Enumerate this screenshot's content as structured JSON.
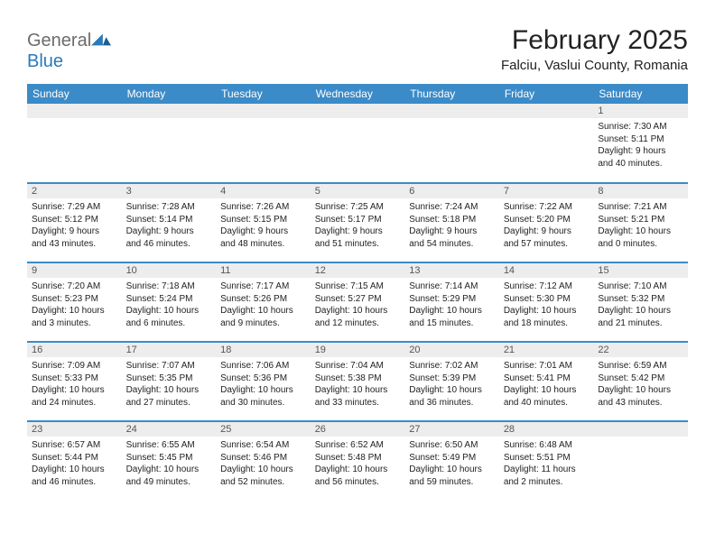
{
  "logo": {
    "text_general": "General",
    "text_blue": "Blue"
  },
  "header": {
    "month_title": "February 2025",
    "location": "Falciu, Vaslui County, Romania"
  },
  "colors": {
    "header_bg": "#3b8bc8",
    "header_text": "#ffffff",
    "daynum_bg": "#ededed",
    "rule": "#3b8bc8",
    "logo_blue": "#2a7ab9",
    "logo_gray": "#6b6b6b"
  },
  "weekdays": [
    "Sunday",
    "Monday",
    "Tuesday",
    "Wednesday",
    "Thursday",
    "Friday",
    "Saturday"
  ],
  "weeks": [
    [
      null,
      null,
      null,
      null,
      null,
      null,
      {
        "n": "1",
        "sr": "Sunrise: 7:30 AM",
        "ss": "Sunset: 5:11 PM",
        "d1": "Daylight: 9 hours",
        "d2": "and 40 minutes."
      }
    ],
    [
      {
        "n": "2",
        "sr": "Sunrise: 7:29 AM",
        "ss": "Sunset: 5:12 PM",
        "d1": "Daylight: 9 hours",
        "d2": "and 43 minutes."
      },
      {
        "n": "3",
        "sr": "Sunrise: 7:28 AM",
        "ss": "Sunset: 5:14 PM",
        "d1": "Daylight: 9 hours",
        "d2": "and 46 minutes."
      },
      {
        "n": "4",
        "sr": "Sunrise: 7:26 AM",
        "ss": "Sunset: 5:15 PM",
        "d1": "Daylight: 9 hours",
        "d2": "and 48 minutes."
      },
      {
        "n": "5",
        "sr": "Sunrise: 7:25 AM",
        "ss": "Sunset: 5:17 PM",
        "d1": "Daylight: 9 hours",
        "d2": "and 51 minutes."
      },
      {
        "n": "6",
        "sr": "Sunrise: 7:24 AM",
        "ss": "Sunset: 5:18 PM",
        "d1": "Daylight: 9 hours",
        "d2": "and 54 minutes."
      },
      {
        "n": "7",
        "sr": "Sunrise: 7:22 AM",
        "ss": "Sunset: 5:20 PM",
        "d1": "Daylight: 9 hours",
        "d2": "and 57 minutes."
      },
      {
        "n": "8",
        "sr": "Sunrise: 7:21 AM",
        "ss": "Sunset: 5:21 PM",
        "d1": "Daylight: 10 hours",
        "d2": "and 0 minutes."
      }
    ],
    [
      {
        "n": "9",
        "sr": "Sunrise: 7:20 AM",
        "ss": "Sunset: 5:23 PM",
        "d1": "Daylight: 10 hours",
        "d2": "and 3 minutes."
      },
      {
        "n": "10",
        "sr": "Sunrise: 7:18 AM",
        "ss": "Sunset: 5:24 PM",
        "d1": "Daylight: 10 hours",
        "d2": "and 6 minutes."
      },
      {
        "n": "11",
        "sr": "Sunrise: 7:17 AM",
        "ss": "Sunset: 5:26 PM",
        "d1": "Daylight: 10 hours",
        "d2": "and 9 minutes."
      },
      {
        "n": "12",
        "sr": "Sunrise: 7:15 AM",
        "ss": "Sunset: 5:27 PM",
        "d1": "Daylight: 10 hours",
        "d2": "and 12 minutes."
      },
      {
        "n": "13",
        "sr": "Sunrise: 7:14 AM",
        "ss": "Sunset: 5:29 PM",
        "d1": "Daylight: 10 hours",
        "d2": "and 15 minutes."
      },
      {
        "n": "14",
        "sr": "Sunrise: 7:12 AM",
        "ss": "Sunset: 5:30 PM",
        "d1": "Daylight: 10 hours",
        "d2": "and 18 minutes."
      },
      {
        "n": "15",
        "sr": "Sunrise: 7:10 AM",
        "ss": "Sunset: 5:32 PM",
        "d1": "Daylight: 10 hours",
        "d2": "and 21 minutes."
      }
    ],
    [
      {
        "n": "16",
        "sr": "Sunrise: 7:09 AM",
        "ss": "Sunset: 5:33 PM",
        "d1": "Daylight: 10 hours",
        "d2": "and 24 minutes."
      },
      {
        "n": "17",
        "sr": "Sunrise: 7:07 AM",
        "ss": "Sunset: 5:35 PM",
        "d1": "Daylight: 10 hours",
        "d2": "and 27 minutes."
      },
      {
        "n": "18",
        "sr": "Sunrise: 7:06 AM",
        "ss": "Sunset: 5:36 PM",
        "d1": "Daylight: 10 hours",
        "d2": "and 30 minutes."
      },
      {
        "n": "19",
        "sr": "Sunrise: 7:04 AM",
        "ss": "Sunset: 5:38 PM",
        "d1": "Daylight: 10 hours",
        "d2": "and 33 minutes."
      },
      {
        "n": "20",
        "sr": "Sunrise: 7:02 AM",
        "ss": "Sunset: 5:39 PM",
        "d1": "Daylight: 10 hours",
        "d2": "and 36 minutes."
      },
      {
        "n": "21",
        "sr": "Sunrise: 7:01 AM",
        "ss": "Sunset: 5:41 PM",
        "d1": "Daylight: 10 hours",
        "d2": "and 40 minutes."
      },
      {
        "n": "22",
        "sr": "Sunrise: 6:59 AM",
        "ss": "Sunset: 5:42 PM",
        "d1": "Daylight: 10 hours",
        "d2": "and 43 minutes."
      }
    ],
    [
      {
        "n": "23",
        "sr": "Sunrise: 6:57 AM",
        "ss": "Sunset: 5:44 PM",
        "d1": "Daylight: 10 hours",
        "d2": "and 46 minutes."
      },
      {
        "n": "24",
        "sr": "Sunrise: 6:55 AM",
        "ss": "Sunset: 5:45 PM",
        "d1": "Daylight: 10 hours",
        "d2": "and 49 minutes."
      },
      {
        "n": "25",
        "sr": "Sunrise: 6:54 AM",
        "ss": "Sunset: 5:46 PM",
        "d1": "Daylight: 10 hours",
        "d2": "and 52 minutes."
      },
      {
        "n": "26",
        "sr": "Sunrise: 6:52 AM",
        "ss": "Sunset: 5:48 PM",
        "d1": "Daylight: 10 hours",
        "d2": "and 56 minutes."
      },
      {
        "n": "27",
        "sr": "Sunrise: 6:50 AM",
        "ss": "Sunset: 5:49 PM",
        "d1": "Daylight: 10 hours",
        "d2": "and 59 minutes."
      },
      {
        "n": "28",
        "sr": "Sunrise: 6:48 AM",
        "ss": "Sunset: 5:51 PM",
        "d1": "Daylight: 11 hours",
        "d2": "and 2 minutes."
      },
      null
    ]
  ]
}
